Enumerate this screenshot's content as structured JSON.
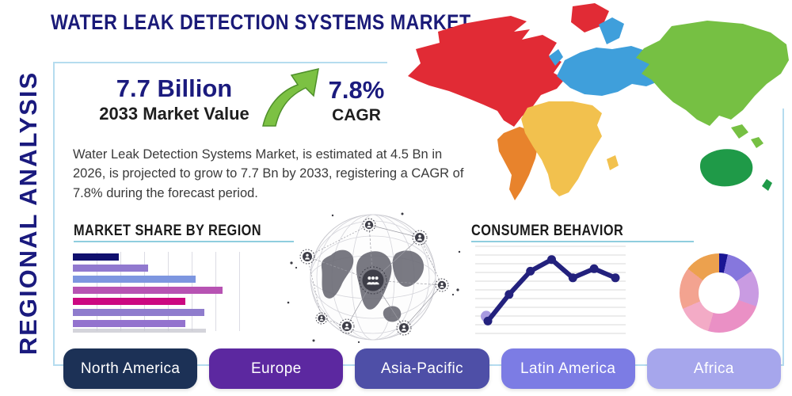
{
  "title": "WATER LEAK DETECTION SYSTEMS MARKET",
  "side_label": "REGIONAL ANALYSIS",
  "stats": {
    "market_value": "7.7 Billion",
    "market_value_label": "2033 Market Value",
    "cagr_value": "7.8%",
    "cagr_label": "CAGR",
    "growth_arrow_icon": "green-curved-up-arrow",
    "arrow_color": "#7cc143",
    "arrow_edge_color": "#4e8f2a"
  },
  "description": "Water Leak Detection Systems Market, is estimated at 4.5 Bn in 2026, is projected to grow to 7.7 Bn by 2033, registering a CAGR of 7.8% during the forecast period.",
  "sections": {
    "market_share_heading": "MARKET SHARE BY REGION",
    "consumer_behavior_heading": "CONSUMER BEHAVIOR"
  },
  "chart_data": [
    {
      "type": "bar",
      "title": "MARKET SHARE BY REGION",
      "orientation": "horizontal",
      "categories": [
        "region-1",
        "region-2",
        "region-3",
        "region-4",
        "region-5",
        "region-6",
        "region-7"
      ],
      "values": [
        27,
        44,
        72,
        88,
        66,
        77,
        66
      ],
      "value_unit": "relative share, % of chart width",
      "colors": [
        "#10106e",
        "#9179cf",
        "#7d96e0",
        "#b753b3",
        "#cc0881",
        "#8f7ccd",
        "#9372ce"
      ],
      "grid": "vertical-lines",
      "axis_labels_shown": false
    },
    {
      "type": "line",
      "title": "CONSUMER BEHAVIOR",
      "x": [
        1,
        2,
        3,
        4,
        5,
        6,
        7
      ],
      "values": [
        12,
        44,
        72,
        86,
        64,
        75,
        64
      ],
      "ylim": [
        0,
        100
      ],
      "line_color": "#23217d",
      "marker": "filled-circle",
      "start_dot_color": "#a89ae0",
      "gridlines": 11,
      "grid_color": "#d9d9d9",
      "axis_labels_shown": false
    },
    {
      "type": "donut",
      "title": "",
      "slices": [
        {
          "label": "slice-navy",
          "pct": 3.5,
          "color": "#1a1694"
        },
        {
          "label": "slice-purple",
          "pct": 12,
          "color": "#8677dd"
        },
        {
          "label": "slice-lilac",
          "pct": 15,
          "color": "#c99be2"
        },
        {
          "label": "slice-rose",
          "pct": 24,
          "color": "#ea90c5"
        },
        {
          "label": "slice-light-pink",
          "pct": 14,
          "color": "#f3abc6"
        },
        {
          "label": "slice-salmon",
          "pct": 17,
          "color": "#f3a390"
        },
        {
          "label": "slice-orange",
          "pct": 14.5,
          "color": "#eca14e"
        }
      ]
    }
  ],
  "map": {
    "graphic": "world-map-by-region",
    "regions": [
      {
        "name": "North America",
        "color": "#e12b35"
      },
      {
        "name": "South America",
        "color": "#e8832c"
      },
      {
        "name": "Europe",
        "color": "#3f9fdb"
      },
      {
        "name": "Africa",
        "color": "#f2c14e"
      },
      {
        "name": "Asia",
        "color": "#76c043"
      },
      {
        "name": "Oceania",
        "color": "#1f9a48"
      }
    ]
  },
  "region_buttons": [
    {
      "label": "North America",
      "color": "#1c3156"
    },
    {
      "label": "Europe",
      "color": "#5c28a0"
    },
    {
      "label": "Asia-Pacific",
      "color": "#4e4fa7"
    },
    {
      "label": "Latin America",
      "color": "#7c7ce4"
    },
    {
      "label": "Africa",
      "color": "#a6a6ec"
    }
  ],
  "decor": {
    "panel_border_color": "#b5dcef",
    "heading_rule_color": "#8fcede",
    "globe_graphic": "globe-network-illustration"
  }
}
